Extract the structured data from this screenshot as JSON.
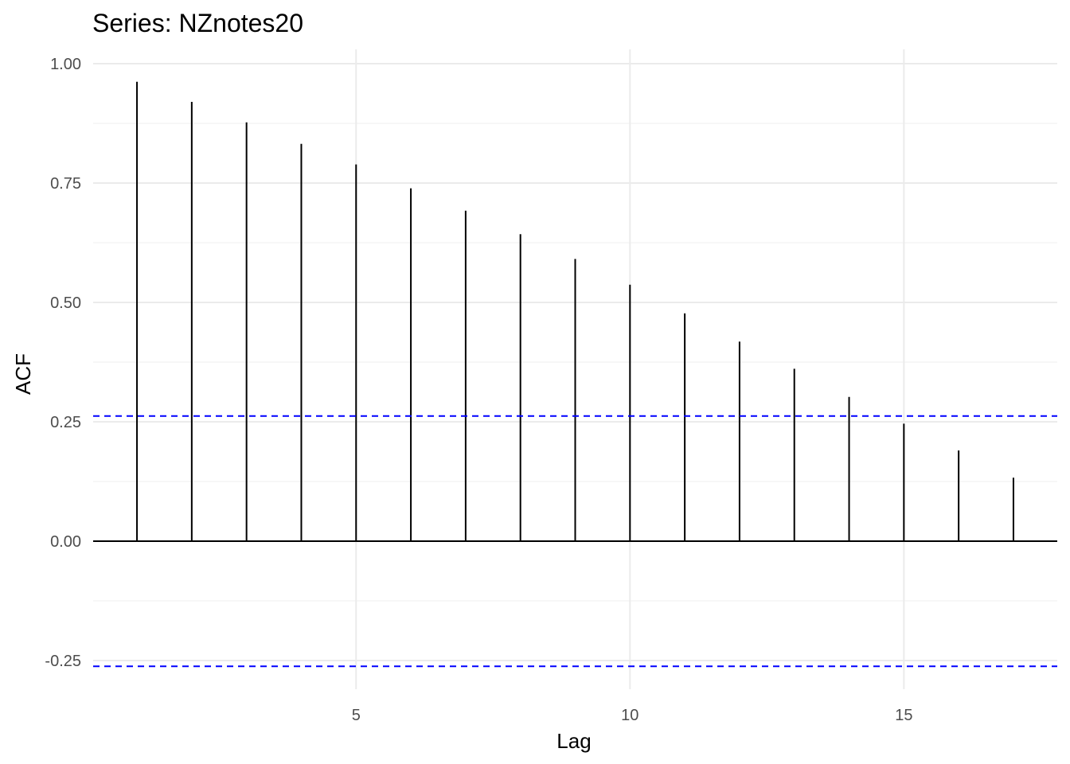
{
  "chart_data": {
    "type": "bar",
    "subtype": "acf-spike",
    "title": "Series: NZnotes20",
    "xlabel": "Lag",
    "ylabel": "ACF",
    "x": [
      1,
      2,
      3,
      4,
      5,
      6,
      7,
      8,
      9,
      10,
      11,
      12,
      13,
      14,
      15,
      16,
      17
    ],
    "values": [
      0.962,
      0.92,
      0.877,
      0.832,
      0.789,
      0.739,
      0.692,
      0.643,
      0.591,
      0.537,
      0.477,
      0.418,
      0.361,
      0.302,
      0.246,
      0.19,
      0.133
    ],
    "confidence_bound": 0.262,
    "xlim": [
      0.2,
      17.8
    ],
    "ylim": [
      -0.31,
      1.03
    ],
    "x_ticks": [
      5,
      10,
      15
    ],
    "x_tick_labels": [
      "5",
      "10",
      "15"
    ],
    "y_ticks": [
      -0.25,
      0,
      0.25,
      0.5,
      0.75,
      1.0
    ],
    "y_tick_labels": [
      "-0.25",
      "0.00",
      "0.25",
      "0.50",
      "0.75",
      "1.00"
    ],
    "grid": true,
    "colors": {
      "spike": "#000000",
      "zero_line": "#000000",
      "confidence": "#0000ff",
      "grid": "#ebebeb"
    }
  }
}
